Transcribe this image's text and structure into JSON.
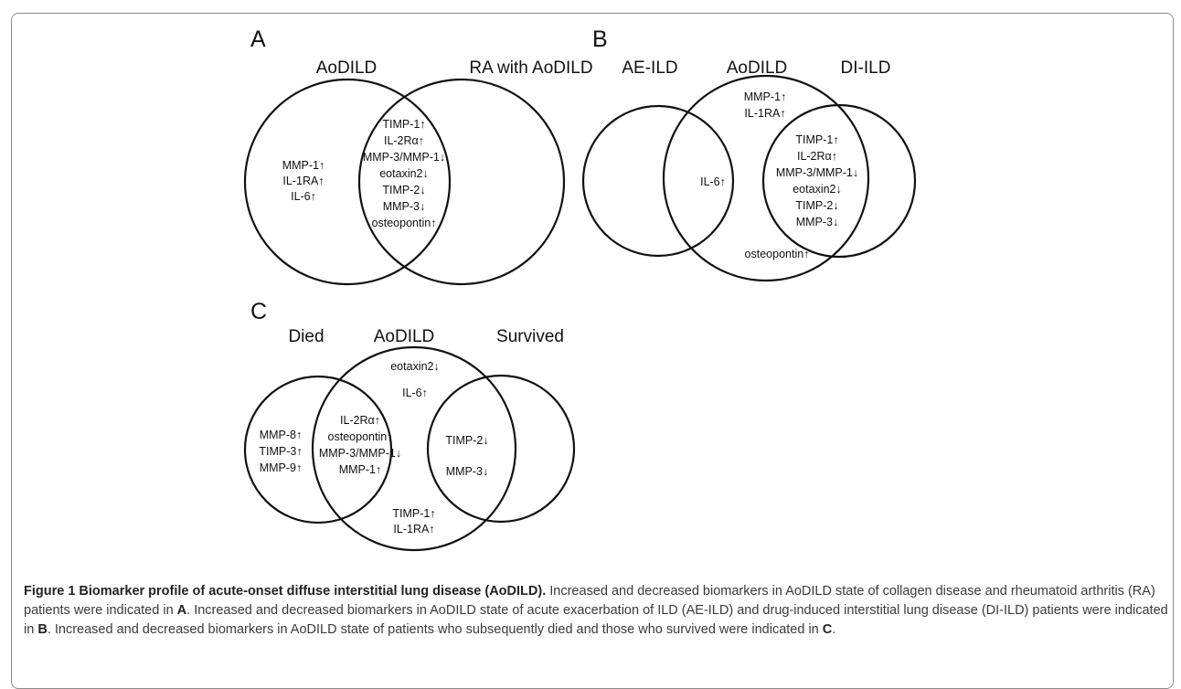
{
  "panels": {
    "A": {
      "letter": "A",
      "sets": [
        "AoDILD",
        "RA with AoDILD"
      ],
      "left_only": [
        "MMP-1↑",
        "IL-1RA↑",
        "IL-6↑"
      ],
      "overlap": [
        "TIMP-1↑",
        "IL-2Rα↑",
        "MMP-3/MMP-1↓",
        "eotaxin2↓",
        "TIMP-2↓",
        "MMP-3↓",
        "osteopontin↑"
      ]
    },
    "B": {
      "letter": "B",
      "sets": [
        "AE-ILD",
        "AoDILD",
        "DI-ILD"
      ],
      "aodild_top": [
        "MMP-1↑",
        "IL-1RA↑"
      ],
      "ae_overlap": [
        "IL-6↑"
      ],
      "di_overlap": [
        "TIMP-1↑",
        "IL-2Rα↑",
        "MMP-3/MMP-1↓",
        "eotaxin2↓",
        "TIMP-2↓",
        "MMP-3↓"
      ],
      "aodild_bottom": [
        "osteopontin↑"
      ]
    },
    "C": {
      "letter": "C",
      "sets": [
        "Died",
        "AoDILD",
        "Survived"
      ],
      "died_only": [
        "MMP-8↑",
        "TIMP-3↑",
        "MMP-9↑"
      ],
      "died_overlap": [
        "IL-2Rα↑",
        "osteopontin↑",
        "MMP-3/MMP-1↓",
        "MMP-1↑"
      ],
      "aodild_top": [
        "eotaxin2↓",
        "IL-6↑"
      ],
      "survived_overlap": [
        "TIMP-2↓",
        "MMP-3↓"
      ],
      "aodild_bottom": [
        "TIMP-1↑",
        "IL-1RA↑"
      ]
    }
  },
  "caption": {
    "title": "Figure 1 Biomarker profile of acute-onset diffuse interstitial lung disease (AoDILD).",
    "s1": " Increased and decreased biomarkers in AoDILD state of collagen disease and rheumatoid arthritis (RA) patients were indicated in ",
    "p1": "A",
    "s2": ". Increased and decreased biomarkers in AoDILD state of acute exacerbation of ILD (AE-ILD) and drug-induced interstitial lung disease (DI-ILD) patients were indicated in ",
    "p2": "B",
    "s3": ". Increased and decreased biomarkers in AoDILD state of patients who subsequently died and those who survived were indicated in ",
    "p3": "C",
    "s4": "."
  }
}
